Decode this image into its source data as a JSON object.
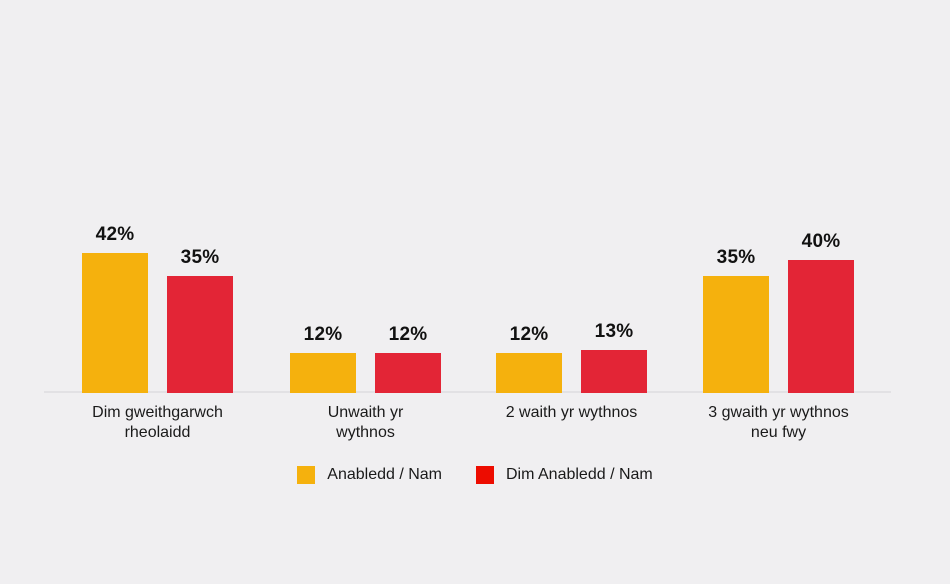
{
  "canvas": {
    "background": "#F0EFF1",
    "axis_line_color": "#E2E1E4",
    "text_color": "#1A1A1A"
  },
  "chart_data": {
    "type": "bar",
    "categories": [
      "Dim gweithgarwch rheolaidd",
      "Unwaith yr wythnos",
      "2 waith yr wythnos",
      "3 gwaith yr wythnos neu fwy"
    ],
    "category_lines": [
      "Dim gweithgarwch\nrheolaidd",
      "Unwaith yr\nwythnos",
      "2 waith yr wythnos",
      "3 gwaith yr wythnos\nneu fwy"
    ],
    "series": [
      {
        "name": "Anabledd / Nam",
        "color": "#F5B10D",
        "values": [
          42,
          12,
          12,
          35
        ]
      },
      {
        "name": "Dim Anabledd / Nam",
        "color": "#E32536",
        "values": [
          35,
          12,
          13,
          40
        ]
      }
    ],
    "value_labels": [
      [
        "42%",
        "35%"
      ],
      [
        "12%",
        "12%"
      ],
      [
        "12%",
        "13%"
      ],
      [
        "35%",
        "40%"
      ]
    ],
    "value_suffix": "%",
    "ylim": [
      0,
      45
    ],
    "grid": false,
    "y_axis_visible": false,
    "legend": {
      "position": "bottom",
      "entries": [
        {
          "label": "Anabledd / Nam",
          "swatch_color": "#F5B10D"
        },
        {
          "label": "Dim Anabledd / Nam",
          "swatch_color": "#ED0C00"
        }
      ]
    }
  }
}
